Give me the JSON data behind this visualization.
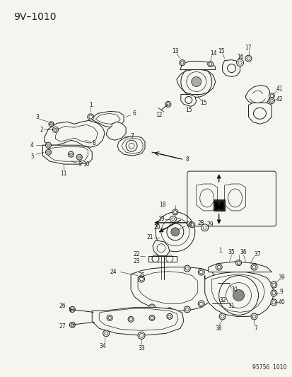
{
  "title": "9V–1010",
  "footer": "95756  1010",
  "background_color": "#f5f5f0",
  "line_color": "#1a1a1a",
  "text_color": "#1a1a1a",
  "fig_width": 4.14,
  "fig_height": 5.33,
  "dpi": 100,
  "title_fontsize": 10,
  "label_fontsize": 6.0,
  "footer_fontsize": 5.5
}
